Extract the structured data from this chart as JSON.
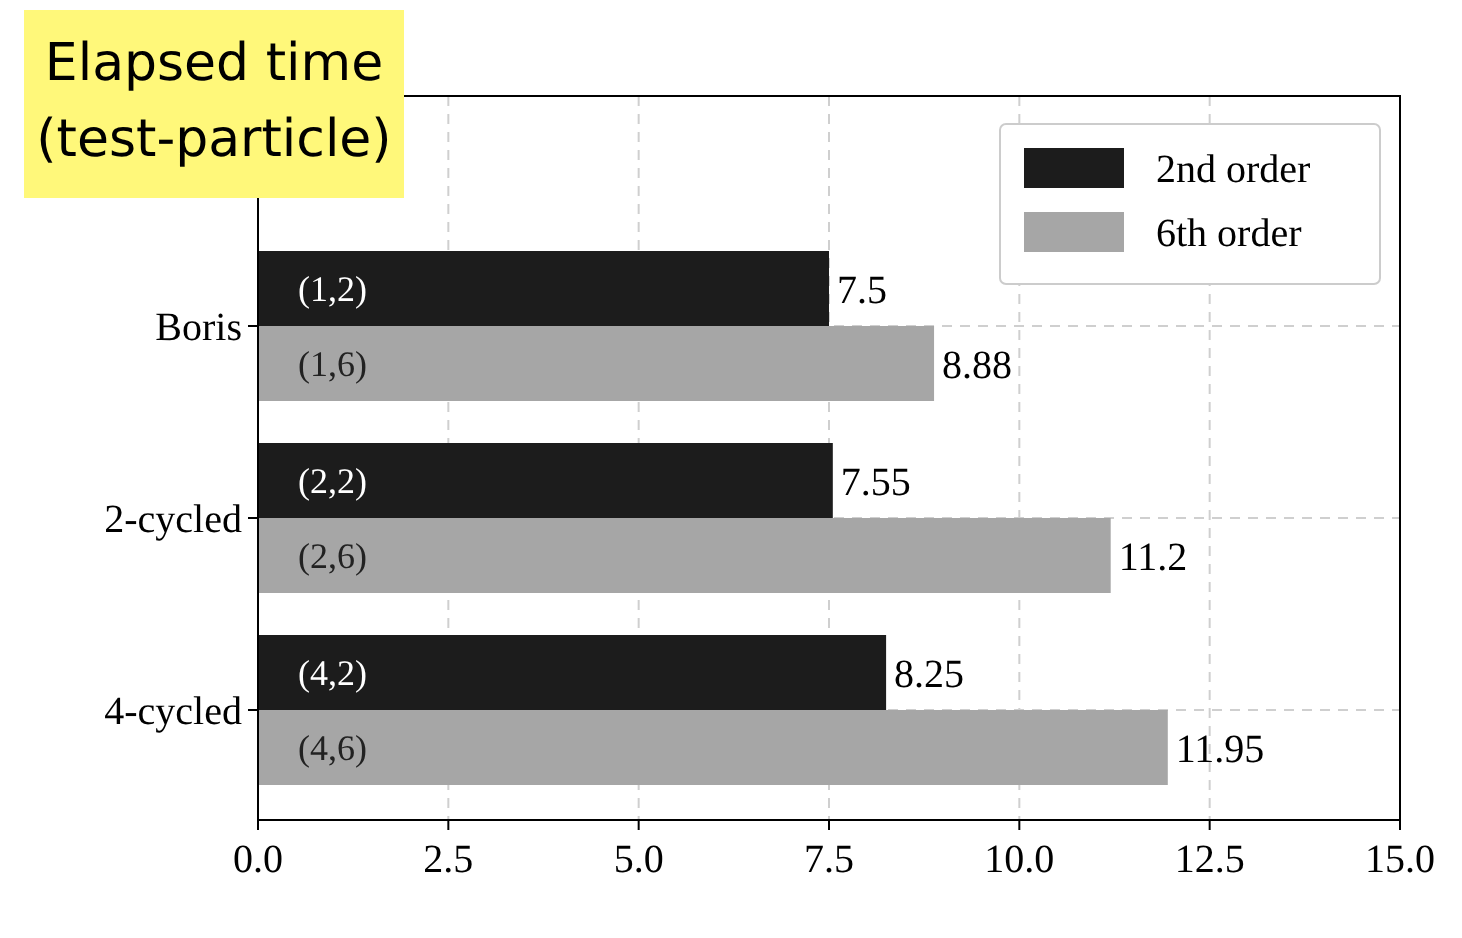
{
  "chart_data": {
    "type": "bar",
    "orientation": "horizontal",
    "title": "Elapsed time\n(test-particle)",
    "categories": [
      "Boris",
      "2-cycled",
      "4-cycled"
    ],
    "series": [
      {
        "name": "2nd order",
        "color": "#1c1c1c",
        "values": [
          7.5,
          7.55,
          8.25
        ]
      },
      {
        "name": "6th order",
        "color": "#a6a6a6",
        "values": [
          8.88,
          11.2,
          11.95
        ]
      }
    ],
    "annotations": [
      "(1,2)",
      "(1,6)",
      "(2,2)",
      "(2,6)",
      "(4,2)",
      "(4,6)"
    ],
    "xlim": [
      0,
      15
    ],
    "xticks": [
      {
        "value": 0,
        "label": "0.0"
      },
      2.5,
      {
        "value": 5,
        "label": "5.0"
      },
      7.5,
      {
        "value": 10,
        "label": "10.0"
      },
      12.5,
      {
        "value": 15,
        "label": "15.0"
      }
    ],
    "data_labels": true,
    "grid": true,
    "legend": "top right"
  }
}
